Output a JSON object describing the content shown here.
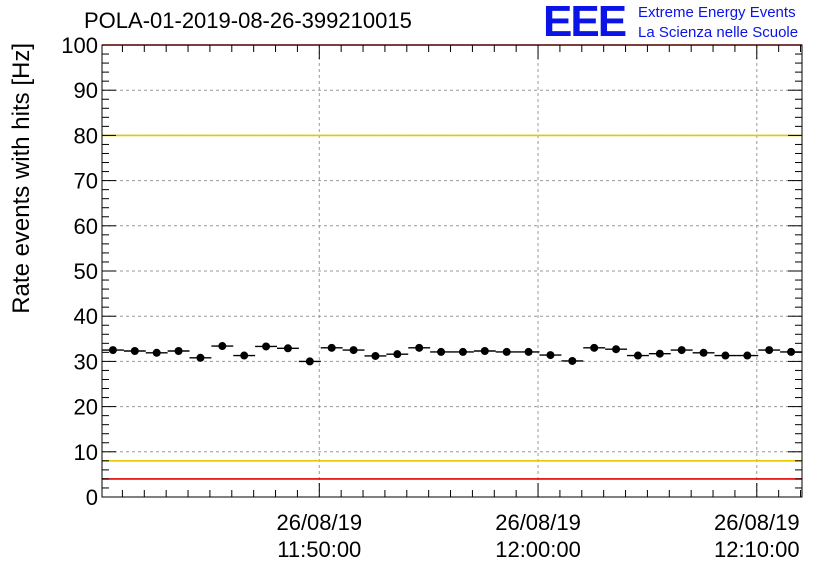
{
  "header": {
    "title": "POLA-01-2019-08-26-399210015",
    "logo_mark": "EEE",
    "logo_line1": "Extreme Energy Events",
    "logo_line2": "La Scienza nelle Scuole"
  },
  "colors": {
    "points": "#000000",
    "grid": "#999999",
    "red_limit": "#e60000",
    "yellow_limit": "#e6c800",
    "logo": "#0a14e6"
  },
  "chart_data": {
    "type": "scatter",
    "title": "POLA-01-2019-08-26-399210015",
    "xlabel": "",
    "ylabel": "Rate events with hits [Hz]",
    "ylim": [
      0,
      100
    ],
    "xlim": [
      "26/08/19 11:40:04",
      "26/08/19 12:12:04"
    ],
    "grid": true,
    "y_ticks": [
      "0",
      "10",
      "20",
      "30",
      "40",
      "50",
      "60",
      "70",
      "80",
      "90",
      "100"
    ],
    "x_ticks": [
      {
        "date": "26/08/19",
        "time": "11:50:00"
      },
      {
        "date": "26/08/19",
        "time": "12:00:00"
      },
      {
        "date": "26/08/19",
        "time": "12:10:00"
      }
    ],
    "bin_width_minutes": 1,
    "points": [
      {
        "x": "26/08/19 11:40:34",
        "y": 32.5
      },
      {
        "x": "26/08/19 11:41:34",
        "y": 32.3
      },
      {
        "x": "26/08/19 11:42:34",
        "y": 31.9
      },
      {
        "x": "26/08/19 11:43:34",
        "y": 32.3
      },
      {
        "x": "26/08/19 11:44:34",
        "y": 30.8
      },
      {
        "x": "26/08/19 11:45:34",
        "y": 33.4
      },
      {
        "x": "26/08/19 11:46:34",
        "y": 31.3
      },
      {
        "x": "26/08/19 11:47:34",
        "y": 33.3
      },
      {
        "x": "26/08/19 11:48:34",
        "y": 32.9
      },
      {
        "x": "26/08/19 11:49:34",
        "y": 30.0
      },
      {
        "x": "26/08/19 11:50:34",
        "y": 33.0
      },
      {
        "x": "26/08/19 11:51:34",
        "y": 32.5
      },
      {
        "x": "26/08/19 11:52:34",
        "y": 31.2
      },
      {
        "x": "26/08/19 11:53:34",
        "y": 31.6
      },
      {
        "x": "26/08/19 11:54:34",
        "y": 33.0
      },
      {
        "x": "26/08/19 11:55:34",
        "y": 32.1
      },
      {
        "x": "26/08/19 11:56:34",
        "y": 32.1
      },
      {
        "x": "26/08/19 11:57:34",
        "y": 32.3
      },
      {
        "x": "26/08/19 11:58:34",
        "y": 32.1
      },
      {
        "x": "26/08/19 11:59:34",
        "y": 32.1
      },
      {
        "x": "26/08/19 12:00:34",
        "y": 31.4
      },
      {
        "x": "26/08/19 12:01:34",
        "y": 30.1
      },
      {
        "x": "26/08/19 12:02:34",
        "y": 33.0
      },
      {
        "x": "26/08/19 12:03:34",
        "y": 32.7
      },
      {
        "x": "26/08/19 12:04:34",
        "y": 31.3
      },
      {
        "x": "26/08/19 12:05:34",
        "y": 31.7
      },
      {
        "x": "26/08/19 12:06:34",
        "y": 32.5
      },
      {
        "x": "26/08/19 12:07:34",
        "y": 31.9
      },
      {
        "x": "26/08/19 12:08:34",
        "y": 31.3
      },
      {
        "x": "26/08/19 12:09:34",
        "y": 31.3
      },
      {
        "x": "26/08/19 12:10:34",
        "y": 32.5
      },
      {
        "x": "26/08/19 12:11:34",
        "y": 32.1
      }
    ],
    "reference_lines": [
      {
        "y": 100,
        "color": "red"
      },
      {
        "y": 80,
        "color": "yellow"
      },
      {
        "y": 8,
        "color": "yellow"
      },
      {
        "y": 4,
        "color": "red"
      }
    ]
  }
}
